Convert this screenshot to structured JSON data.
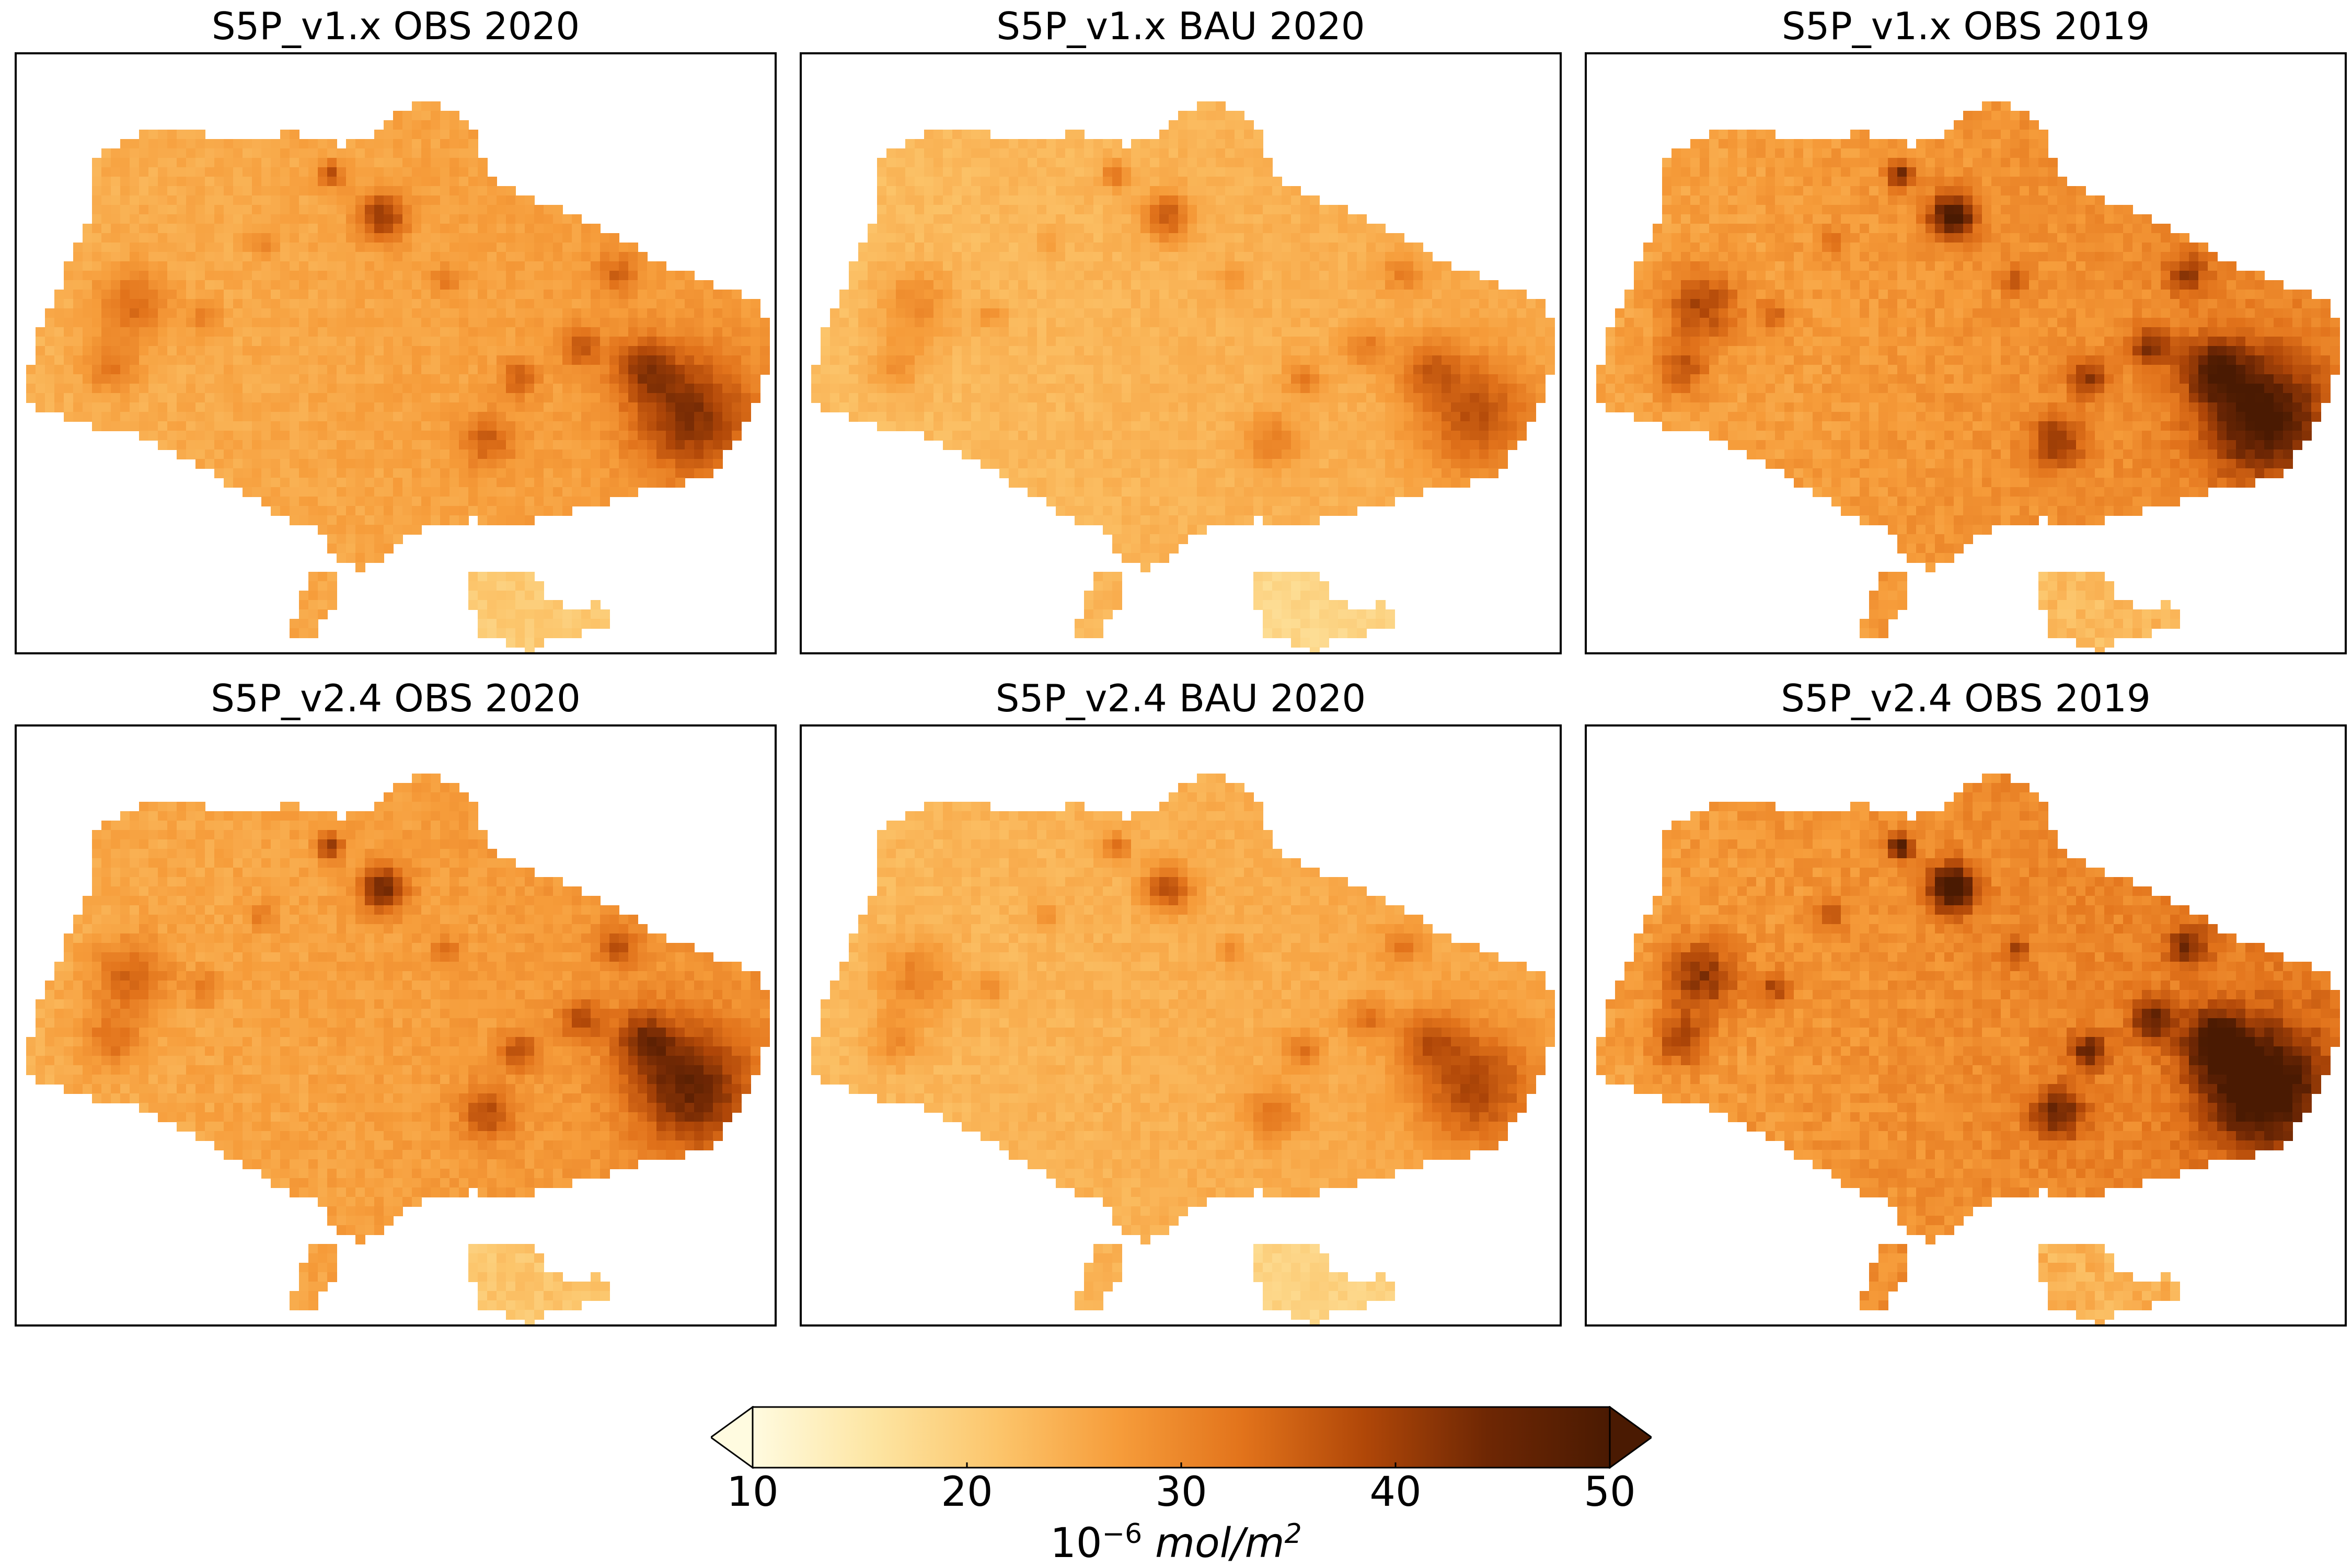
{
  "figure": {
    "panels": [
      {
        "id": "p1",
        "title": "S5P_v1.x OBS 2020",
        "intensity": 0.55,
        "contrast": 0.7
      },
      {
        "id": "p2",
        "title": "S5P_v1.x BAU 2020",
        "intensity": 0.38,
        "contrast": 0.55
      },
      {
        "id": "p3",
        "title": "S5P_v1.x OBS 2019",
        "intensity": 0.7,
        "contrast": 1.0
      },
      {
        "id": "p4",
        "title": "S5P_v2.4 OBS 2020",
        "intensity": 0.6,
        "contrast": 0.8
      },
      {
        "id": "p5",
        "title": "S5P_v2.4 BAU 2020",
        "intensity": 0.42,
        "contrast": 0.6
      },
      {
        "id": "p6",
        "title": "S5P_v2.4 OBS 2019",
        "intensity": 0.78,
        "contrast": 1.15
      }
    ],
    "colorbar": {
      "ticks": [
        "10",
        "20",
        "30",
        "40",
        "50"
      ],
      "min": 10,
      "max": 50,
      "extend": "both",
      "colors": [
        "#fffbe0",
        "#fde5a2",
        "#fcc56b",
        "#f69c3a",
        "#e2731b",
        "#b04708",
        "#6e2704",
        "#4a1a02"
      ],
      "label_base": "10",
      "label_exp": "−6",
      "label_unit": "mol/m",
      "label_unit_exp": "2"
    }
  }
}
